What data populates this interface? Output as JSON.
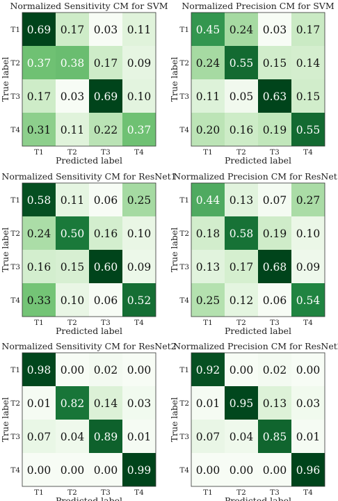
{
  "chart_data": [
    {
      "type": "heatmap",
      "title": "Normalized Sensitivity CM for SVM",
      "xlabel": "Predicted label",
      "ylabel": "True label",
      "x_categories": [
        "T1",
        "T2",
        "T3",
        "T4"
      ],
      "y_categories": [
        "T1",
        "T2",
        "T3",
        "T4"
      ],
      "values": [
        [
          0.69,
          0.17,
          0.03,
          0.11
        ],
        [
          0.37,
          0.38,
          0.17,
          0.09
        ],
        [
          0.17,
          0.03,
          0.69,
          0.1
        ],
        [
          0.31,
          0.11,
          0.22,
          0.37
        ]
      ]
    },
    {
      "type": "heatmap",
      "title": "Normalized Precision CM for SVM",
      "xlabel": "Predicted label",
      "ylabel": "True label",
      "x_categories": [
        "T1",
        "T2",
        "T3",
        "T4"
      ],
      "y_categories": [
        "T1",
        "T2",
        "T3",
        "T4"
      ],
      "values": [
        [
          0.45,
          0.24,
          0.03,
          0.17
        ],
        [
          0.24,
          0.55,
          0.15,
          0.14
        ],
        [
          0.11,
          0.05,
          0.63,
          0.15
        ],
        [
          0.2,
          0.16,
          0.19,
          0.55
        ]
      ]
    },
    {
      "type": "heatmap",
      "title": "Normalized Sensitivity CM for ResNet1",
      "xlabel": "Predicted label",
      "ylabel": "True label",
      "x_categories": [
        "T1",
        "T2",
        "T3",
        "T4"
      ],
      "y_categories": [
        "T1",
        "T2",
        "T3",
        "T4"
      ],
      "values": [
        [
          0.58,
          0.11,
          0.06,
          0.25
        ],
        [
          0.24,
          0.5,
          0.16,
          0.1
        ],
        [
          0.16,
          0.15,
          0.6,
          0.09
        ],
        [
          0.33,
          0.1,
          0.06,
          0.52
        ]
      ]
    },
    {
      "type": "heatmap",
      "title": "Normalized Precision CM for ResNet1",
      "xlabel": "Predicted label",
      "ylabel": "True label",
      "x_categories": [
        "T1",
        "T2",
        "T3",
        "T4"
      ],
      "y_categories": [
        "T1",
        "T2",
        "T3",
        "T4"
      ],
      "values": [
        [
          0.44,
          0.13,
          0.07,
          0.27
        ],
        [
          0.18,
          0.58,
          0.19,
          0.1
        ],
        [
          0.13,
          0.17,
          0.68,
          0.09
        ],
        [
          0.25,
          0.12,
          0.06,
          0.54
        ]
      ]
    },
    {
      "type": "heatmap",
      "title": "Normalized Sensitivity CM for ResNet2",
      "xlabel": "Predicted label",
      "ylabel": "True label",
      "x_categories": [
        "T1",
        "T2",
        "T3",
        "T4"
      ],
      "y_categories": [
        "T1",
        "T2",
        "T3",
        "T4"
      ],
      "values": [
        [
          0.98,
          0.0,
          0.02,
          0.0
        ],
        [
          0.01,
          0.82,
          0.14,
          0.03
        ],
        [
          0.07,
          0.04,
          0.89,
          0.01
        ],
        [
          0.0,
          0.0,
          0.0,
          0.99
        ]
      ]
    },
    {
      "type": "heatmap",
      "title": "Normalized Precision CM for ResNet2",
      "xlabel": "Predicted label",
      "ylabel": "True label",
      "x_categories": [
        "T1",
        "T2",
        "T3",
        "T4"
      ],
      "y_categories": [
        "T1",
        "T2",
        "T3",
        "T4"
      ],
      "values": [
        [
          0.92,
          0.0,
          0.02,
          0.0
        ],
        [
          0.01,
          0.95,
          0.13,
          0.03
        ],
        [
          0.07,
          0.04,
          0.85,
          0.01
        ],
        [
          0.0,
          0.0,
          0.0,
          0.96
        ]
      ]
    }
  ]
}
